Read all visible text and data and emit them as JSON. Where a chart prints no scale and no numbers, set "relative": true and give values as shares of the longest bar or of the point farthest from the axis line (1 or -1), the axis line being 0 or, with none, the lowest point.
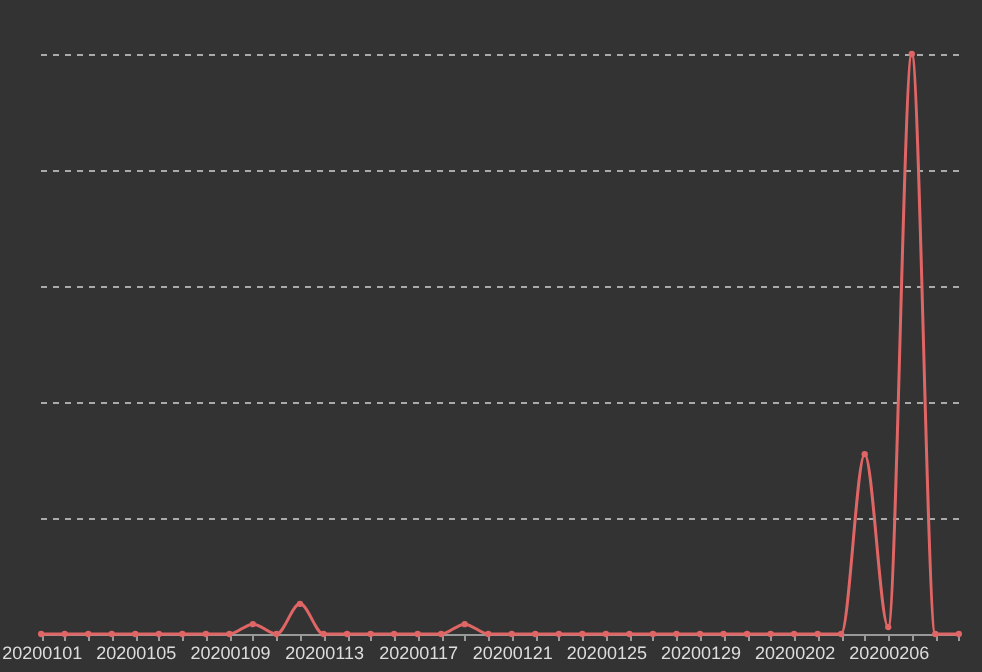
{
  "chart_data": {
    "type": "line",
    "relative": true,
    "grid": "y",
    "marker": "circle",
    "line_style": "solid",
    "categories": [
      "20200101",
      null,
      null,
      null,
      "20200105",
      null,
      null,
      null,
      "20200109",
      null,
      null,
      null,
      "20200113",
      null,
      null,
      null,
      "20200117",
      null,
      null,
      null,
      "20200121",
      null,
      null,
      null,
      "20200125",
      null,
      null,
      null,
      "20200129",
      null,
      null,
      null,
      "20200202",
      null,
      null,
      null,
      "20200206",
      null,
      null,
      null
    ],
    "series": [
      {
        "color": "#e06666",
        "values": [
          0,
          0,
          0,
          0,
          0,
          0,
          0,
          0,
          0,
          0.017,
          0,
          0.052,
          0,
          0,
          0,
          0,
          0,
          0,
          0.017,
          0,
          0,
          0,
          0,
          0,
          0,
          0,
          0,
          0,
          0,
          0,
          0,
          0,
          0,
          0,
          0,
          0.31,
          0.012,
          1,
          0,
          0
        ]
      }
    ]
  }
}
